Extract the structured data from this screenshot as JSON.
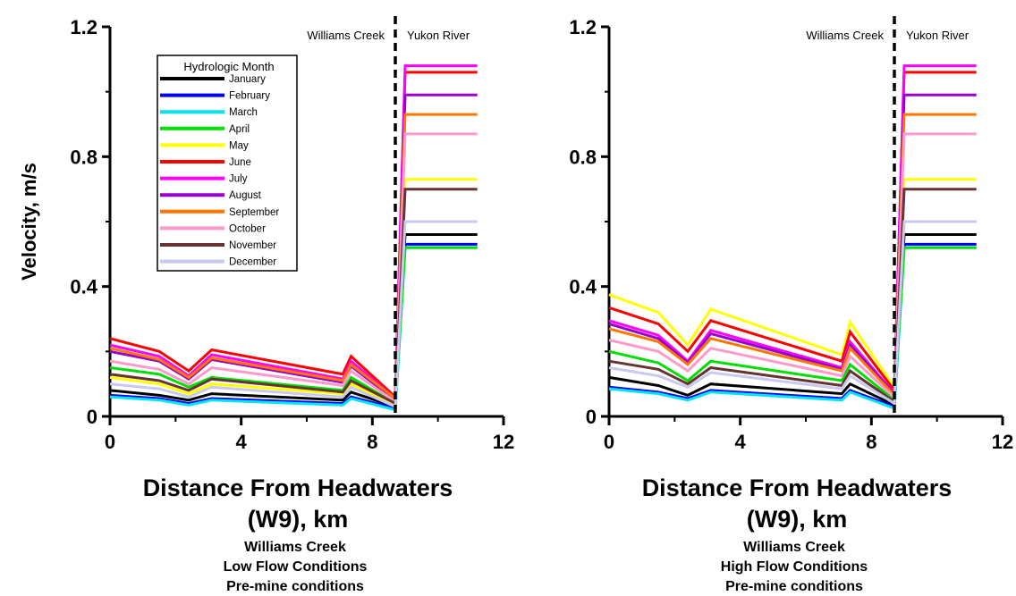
{
  "chart_data": [
    {
      "type": "line",
      "ylabel": "Velocity, m/s",
      "xlabel_line1": "Distance From Headwaters",
      "xlabel_line2": "(W9), km",
      "caption": [
        "Williams Creek",
        "Low Flow Conditions",
        "Pre-mine conditions"
      ],
      "xlim": [
        0,
        12
      ],
      "ylim": [
        0,
        1.2
      ],
      "x_ticks": [
        0,
        4,
        8,
        12
      ],
      "y_ticks": [
        0,
        0.4,
        0.8,
        1.2
      ],
      "y_tick_labels": [
        "0",
        "0.4",
        "0.8",
        "1.2"
      ],
      "divider_x": 8.7,
      "region_labels": {
        "left": "Williams Creek",
        "right": "Yukon River"
      },
      "legend": {
        "title": "Hydrologic Month",
        "placement": "top-left"
      },
      "x": [
        0,
        1.5,
        2.4,
        3.1,
        7.1,
        7.35,
        8.7,
        9.0,
        11.2
      ],
      "series": [
        {
          "name": "January",
          "color": "#000000",
          "values": [
            0.08,
            0.065,
            0.05,
            0.07,
            0.05,
            0.075,
            0.03,
            0.56,
            0.56
          ]
        },
        {
          "name": "February",
          "color": "#0000ff",
          "values": [
            0.065,
            0.055,
            0.04,
            0.055,
            0.04,
            0.06,
            0.025,
            0.53,
            0.53
          ]
        },
        {
          "name": "March",
          "color": "#00e5ee",
          "values": [
            0.06,
            0.05,
            0.035,
            0.05,
            0.035,
            0.055,
            0.02,
            0.52,
            0.52
          ]
        },
        {
          "name": "April",
          "color": "#00dd00",
          "values": [
            0.15,
            0.13,
            0.09,
            0.12,
            0.08,
            0.12,
            0.04,
            0.52,
            0.52
          ]
        },
        {
          "name": "May",
          "color": "#ffff00",
          "values": [
            0.12,
            0.1,
            0.07,
            0.1,
            0.07,
            0.1,
            0.035,
            0.73,
            0.73
          ]
        },
        {
          "name": "June",
          "color": "#ff0000",
          "values": [
            0.24,
            0.2,
            0.14,
            0.205,
            0.13,
            0.185,
            0.06,
            1.06,
            1.06
          ]
        },
        {
          "name": "July",
          "color": "#ff00ff",
          "values": [
            0.22,
            0.185,
            0.125,
            0.19,
            0.115,
            0.17,
            0.055,
            1.08,
            1.08
          ]
        },
        {
          "name": "August",
          "color": "#9900cc",
          "values": [
            0.2,
            0.17,
            0.115,
            0.175,
            0.105,
            0.155,
            0.05,
            0.99,
            0.99
          ]
        },
        {
          "name": "September",
          "color": "#ff7700",
          "values": [
            0.21,
            0.175,
            0.12,
            0.18,
            0.11,
            0.16,
            0.055,
            0.93,
            0.93
          ]
        },
        {
          "name": "October",
          "color": "#ff99cc",
          "values": [
            0.17,
            0.145,
            0.1,
            0.15,
            0.095,
            0.14,
            0.045,
            0.87,
            0.87
          ]
        },
        {
          "name": "November",
          "color": "#663333",
          "values": [
            0.13,
            0.11,
            0.08,
            0.115,
            0.075,
            0.11,
            0.04,
            0.7,
            0.7
          ]
        },
        {
          "name": "December",
          "color": "#c8c8f0",
          "values": [
            0.1,
            0.085,
            0.06,
            0.09,
            0.06,
            0.09,
            0.03,
            0.6,
            0.6
          ]
        }
      ]
    },
    {
      "type": "line",
      "ylabel": "",
      "xlabel_line1": "Distance From Headwaters",
      "xlabel_line2": "(W9), km",
      "caption": [
        "Williams Creek",
        "High Flow Conditions",
        "Pre-mine conditions"
      ],
      "xlim": [
        0,
        12
      ],
      "ylim": [
        0,
        1.2
      ],
      "x_ticks": [
        0,
        4,
        8,
        12
      ],
      "y_ticks": [
        0,
        0.4,
        0.8,
        1.2
      ],
      "y_tick_labels": [
        "0",
        "0.4",
        "0.8",
        "1.2"
      ],
      "divider_x": 8.7,
      "region_labels": {
        "left": "Williams Creek",
        "right": "Yukon River"
      },
      "x": [
        0,
        1.5,
        2.4,
        3.1,
        7.1,
        7.35,
        8.7,
        9.0,
        11.2
      ],
      "series": [
        {
          "name": "January",
          "color": "#000000",
          "values": [
            0.12,
            0.095,
            0.065,
            0.1,
            0.07,
            0.1,
            0.035,
            0.56,
            0.56
          ]
        },
        {
          "name": "February",
          "color": "#0000ff",
          "values": [
            0.09,
            0.075,
            0.055,
            0.08,
            0.055,
            0.08,
            0.03,
            0.53,
            0.53
          ]
        },
        {
          "name": "March",
          "color": "#00e5ee",
          "values": [
            0.085,
            0.07,
            0.05,
            0.075,
            0.05,
            0.075,
            0.025,
            0.52,
            0.52
          ]
        },
        {
          "name": "April",
          "color": "#00dd00",
          "values": [
            0.2,
            0.165,
            0.11,
            0.17,
            0.11,
            0.16,
            0.05,
            0.52,
            0.52
          ]
        },
        {
          "name": "May",
          "color": "#ffff00",
          "values": [
            0.375,
            0.32,
            0.22,
            0.33,
            0.19,
            0.29,
            0.09,
            0.73,
            0.73
          ]
        },
        {
          "name": "June",
          "color": "#ff0000",
          "values": [
            0.335,
            0.285,
            0.2,
            0.295,
            0.17,
            0.26,
            0.08,
            1.06,
            1.06
          ]
        },
        {
          "name": "July",
          "color": "#ff00ff",
          "values": [
            0.295,
            0.25,
            0.17,
            0.265,
            0.15,
            0.23,
            0.07,
            1.08,
            1.08
          ]
        },
        {
          "name": "August",
          "color": "#9900cc",
          "values": [
            0.285,
            0.24,
            0.165,
            0.255,
            0.145,
            0.22,
            0.068,
            0.99,
            0.99
          ]
        },
        {
          "name": "September",
          "color": "#ff7700",
          "values": [
            0.27,
            0.23,
            0.16,
            0.24,
            0.14,
            0.21,
            0.065,
            0.93,
            0.93
          ]
        },
        {
          "name": "October",
          "color": "#ff99cc",
          "values": [
            0.235,
            0.2,
            0.14,
            0.21,
            0.125,
            0.185,
            0.058,
            0.87,
            0.87
          ]
        },
        {
          "name": "November",
          "color": "#663333",
          "values": [
            0.17,
            0.145,
            0.1,
            0.15,
            0.095,
            0.14,
            0.045,
            0.7,
            0.7
          ]
        },
        {
          "name": "December",
          "color": "#c8c8f0",
          "values": [
            0.15,
            0.125,
            0.09,
            0.135,
            0.085,
            0.125,
            0.04,
            0.6,
            0.6
          ]
        }
      ]
    }
  ]
}
